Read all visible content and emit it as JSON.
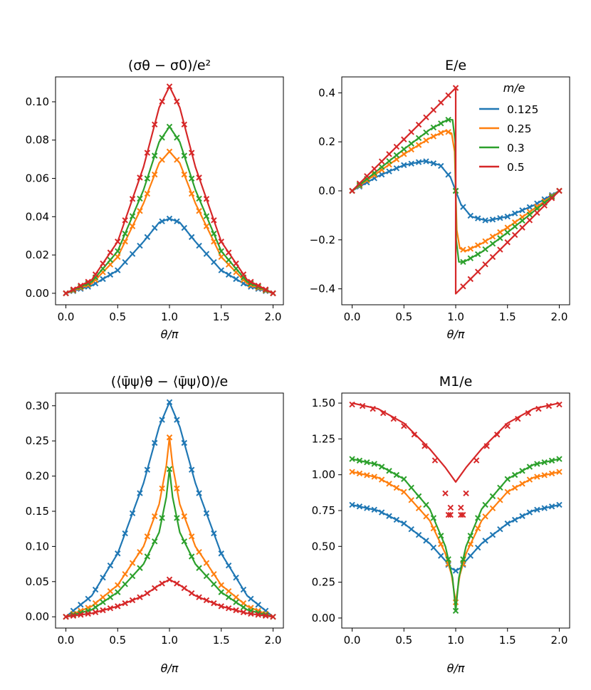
{
  "chart_data": [
    {
      "type": "line",
      "title": "(σθ − σ0)/e²",
      "xlabel": "θ/π",
      "ylabel": "",
      "xlim": [
        -0.1,
        2.1
      ],
      "ylim": [
        -0.006,
        0.113
      ],
      "xticks": [
        0.0,
        0.5,
        1.0,
        1.5,
        2.0
      ],
      "xticklabels": [
        "0.0",
        "0.5",
        "1.0",
        "1.5",
        "2.0"
      ],
      "yticks": [
        0.0,
        0.02,
        0.04,
        0.06,
        0.08,
        0.1
      ],
      "yticklabels": [
        "0.00",
        "0.02",
        "0.04",
        "0.06",
        "0.08",
        "0.10"
      ],
      "markers": "x (numerical) with lines (analytic)",
      "series": [
        {
          "name": "0.125",
          "color": "#1f77b4",
          "x": [
            0,
            0.25,
            0.5,
            0.75,
            0.9,
            1.0,
            1.1,
            1.25,
            1.5,
            1.75,
            2.0
          ],
          "y": [
            0,
            0.004,
            0.012,
            0.027,
            0.037,
            0.039,
            0.037,
            0.027,
            0.012,
            0.004,
            0
          ]
        },
        {
          "name": "0.25",
          "color": "#ff7f0e",
          "x": [
            0,
            0.25,
            0.5,
            0.75,
            0.9,
            1.0,
            1.1,
            1.25,
            1.5,
            1.75,
            2.0
          ],
          "y": [
            0,
            0.005,
            0.019,
            0.047,
            0.068,
            0.074,
            0.068,
            0.047,
            0.019,
            0.005,
            0
          ]
        },
        {
          "name": "0.3",
          "color": "#2ca02c",
          "x": [
            0,
            0.25,
            0.5,
            0.75,
            0.9,
            1.0,
            1.1,
            1.25,
            1.5,
            1.75,
            2.0
          ],
          "y": [
            0,
            0.006,
            0.022,
            0.054,
            0.079,
            0.087,
            0.079,
            0.054,
            0.022,
            0.006,
            0
          ]
        },
        {
          "name": "0.5",
          "color": "#d62728",
          "x": [
            0,
            0.25,
            0.5,
            0.75,
            0.9,
            1.0,
            1.1,
            1.25,
            1.5,
            1.75,
            2.0
          ],
          "y": [
            0,
            0.007,
            0.027,
            0.066,
            0.097,
            0.108,
            0.097,
            0.066,
            0.027,
            0.007,
            0
          ]
        }
      ]
    },
    {
      "type": "line",
      "title": "E/e",
      "xlabel": "θ/π",
      "ylabel": "",
      "xlim": [
        -0.1,
        2.1
      ],
      "ylim": [
        -0.465,
        0.465
      ],
      "xticks": [
        0.0,
        0.5,
        1.0,
        1.5,
        2.0
      ],
      "xticklabels": [
        "0.0",
        "0.5",
        "1.0",
        "1.5",
        "2.0"
      ],
      "yticks": [
        -0.4,
        -0.2,
        0.0,
        0.2,
        0.4
      ],
      "yticklabels": [
        "−0.4",
        "−0.2",
        "0.0",
        "0.2",
        "0.4"
      ],
      "legend": {
        "title": "m/e",
        "position": "top-right",
        "entries": [
          "0.125",
          "0.25",
          "0.3",
          "0.5"
        ]
      },
      "series": [
        {
          "name": "0.125",
          "color": "#1f77b4",
          "x": [
            0,
            0.25,
            0.5,
            0.7,
            0.85,
            0.95,
            1.0,
            1.05,
            1.15,
            1.3,
            1.5,
            1.75,
            2.0
          ],
          "y": [
            0,
            0.06,
            0.105,
            0.122,
            0.105,
            0.055,
            0,
            -0.055,
            -0.105,
            -0.122,
            -0.105,
            -0.06,
            0
          ]
        },
        {
          "name": "0.25",
          "color": "#ff7f0e",
          "x": [
            0,
            0.25,
            0.5,
            0.75,
            0.9,
            0.96,
            0.99,
            1.0,
            1.01,
            1.04,
            1.1,
            1.25,
            1.5,
            1.75,
            2.0
          ],
          "y": [
            0,
            0.075,
            0.15,
            0.215,
            0.245,
            0.235,
            0.16,
            0,
            -0.16,
            -0.235,
            -0.245,
            -0.215,
            -0.15,
            -0.075,
            0
          ]
        },
        {
          "name": "0.3",
          "color": "#2ca02c",
          "x": [
            0,
            0.25,
            0.5,
            0.75,
            0.92,
            0.97,
            0.995,
            1.0,
            1.005,
            1.03,
            1.08,
            1.25,
            1.5,
            1.75,
            2.0
          ],
          "y": [
            0,
            0.085,
            0.17,
            0.25,
            0.29,
            0.29,
            0.2,
            0,
            -0.2,
            -0.29,
            -0.29,
            -0.25,
            -0.17,
            -0.085,
            0
          ]
        },
        {
          "name": "0.5",
          "color": "#d62728",
          "x": [
            0,
            0.5,
            1.0,
            1.0,
            1.5,
            2.0
          ],
          "y": [
            0,
            0.21,
            0.42,
            -0.42,
            -0.21,
            0
          ]
        }
      ]
    },
    {
      "type": "line",
      "title": "(⟨ψ̄ψ⟩θ − ⟨ψ̄ψ⟩0)/e",
      "xlabel": "θ/π",
      "ylabel": "",
      "xlim": [
        -0.1,
        2.1
      ],
      "ylim": [
        -0.016,
        0.318
      ],
      "xticks": [
        0.0,
        0.5,
        1.0,
        1.5,
        2.0
      ],
      "xticklabels": [
        "0.0",
        "0.5",
        "1.0",
        "1.5",
        "2.0"
      ],
      "yticks": [
        0.0,
        0.05,
        0.1,
        0.15,
        0.2,
        0.25,
        0.3
      ],
      "yticklabels": [
        "0.00",
        "0.05",
        "0.10",
        "0.15",
        "0.20",
        "0.25",
        "0.30"
      ],
      "series": [
        {
          "name": "0.125",
          "color": "#1f77b4",
          "x": [
            0,
            0.25,
            0.5,
            0.75,
            0.9,
            1.0,
            1.1,
            1.25,
            1.5,
            1.75,
            2.0
          ],
          "y": [
            0,
            0.03,
            0.09,
            0.19,
            0.27,
            0.305,
            0.27,
            0.19,
            0.09,
            0.03,
            0
          ]
        },
        {
          "name": "0.25",
          "color": "#ff7f0e",
          "x": [
            0,
            0.25,
            0.5,
            0.75,
            0.9,
            0.97,
            1.0,
            1.03,
            1.1,
            1.25,
            1.5,
            1.75,
            2.0
          ],
          "y": [
            0,
            0.015,
            0.045,
            0.1,
            0.16,
            0.215,
            0.255,
            0.215,
            0.16,
            0.1,
            0.045,
            0.015,
            0
          ]
        },
        {
          "name": "0.3",
          "color": "#2ca02c",
          "x": [
            0,
            0.25,
            0.5,
            0.75,
            0.9,
            0.97,
            1.0,
            1.03,
            1.1,
            1.25,
            1.5,
            1.75,
            2.0
          ],
          "y": [
            0,
            0.01,
            0.035,
            0.075,
            0.12,
            0.17,
            0.21,
            0.17,
            0.12,
            0.075,
            0.035,
            0.01,
            0
          ]
        },
        {
          "name": "0.5",
          "color": "#d62728",
          "x": [
            0,
            0.25,
            0.5,
            0.75,
            0.9,
            1.0,
            1.1,
            1.25,
            1.5,
            1.75,
            2.0
          ],
          "y": [
            0,
            0.005,
            0.015,
            0.03,
            0.045,
            0.053,
            0.045,
            0.03,
            0.015,
            0.005,
            0
          ]
        }
      ]
    },
    {
      "type": "line",
      "title": "M1/e",
      "xlabel": "θ/π",
      "ylabel": "",
      "xlim": [
        -0.1,
        2.1
      ],
      "ylim": [
        -0.07,
        1.57
      ],
      "xticks": [
        0.0,
        0.5,
        1.0,
        1.5,
        2.0
      ],
      "xticklabels": [
        "0.0",
        "0.5",
        "1.0",
        "1.5",
        "2.0"
      ],
      "yticks": [
        0.0,
        0.25,
        0.5,
        0.75,
        1.0,
        1.25,
        1.5
      ],
      "yticklabels": [
        "0.00",
        "0.25",
        "0.50",
        "0.75",
        "1.00",
        "1.25",
        "1.50"
      ],
      "series": [
        {
          "name": "0.125",
          "color": "#1f77b4",
          "x": [
            0,
            0.25,
            0.5,
            0.75,
            0.9,
            0.95,
            1.0,
            1.05,
            1.1,
            1.25,
            1.5,
            1.75,
            2.0
          ],
          "y": [
            0.79,
            0.75,
            0.66,
            0.52,
            0.4,
            0.35,
            0.33,
            0.35,
            0.4,
            0.52,
            0.66,
            0.75,
            0.79
          ]
        },
        {
          "name": "0.25",
          "color": "#ff7f0e",
          "x": [
            0,
            0.25,
            0.5,
            0.75,
            0.9,
            0.96,
            1.0,
            1.04,
            1.1,
            1.25,
            1.5,
            1.75,
            2.0
          ],
          "y": [
            1.02,
            0.98,
            0.88,
            0.68,
            0.45,
            0.3,
            0.11,
            0.3,
            0.45,
            0.68,
            0.88,
            0.98,
            1.02
          ]
        },
        {
          "name": "0.3",
          "color": "#2ca02c",
          "x": [
            0,
            0.25,
            0.5,
            0.75,
            0.9,
            0.97,
            1.0,
            1.03,
            1.1,
            1.25,
            1.5,
            1.75,
            2.0
          ],
          "y": [
            1.11,
            1.07,
            0.97,
            0.76,
            0.5,
            0.28,
            0.05,
            0.28,
            0.5,
            0.76,
            0.97,
            1.07,
            1.11
          ]
        },
        {
          "name": "0.5",
          "color": "#d62728",
          "x": [
            0,
            0.25,
            0.5,
            0.75,
            0.9,
            1.0,
            1.1,
            1.25,
            1.5,
            1.75,
            2.0
          ],
          "y": [
            1.5,
            1.46,
            1.36,
            1.18,
            1.05,
            0.95,
            1.05,
            1.18,
            1.36,
            1.46,
            1.5
          ]
        }
      ],
      "extra_points": {
        "name": "0.5 (numerical)",
        "color": "#d62728",
        "x": [
          0,
          0.1,
          0.2,
          0.3,
          0.4,
          0.5,
          0.6,
          0.7,
          0.8,
          0.9,
          0.95,
          1.05,
          1.1,
          1.2,
          1.3,
          1.4,
          1.5,
          1.6,
          1.7,
          1.8,
          1.9,
          2.0,
          0.93,
          1.07,
          0.95,
          1.05
        ],
        "y": [
          1.49,
          1.48,
          1.46,
          1.43,
          1.39,
          1.34,
          1.28,
          1.2,
          1.1,
          0.87,
          0.77,
          0.77,
          0.87,
          1.1,
          1.2,
          1.28,
          1.34,
          1.39,
          1.43,
          1.46,
          1.48,
          1.49,
          0.72,
          0.72,
          0.72,
          0.72
        ]
      }
    }
  ]
}
